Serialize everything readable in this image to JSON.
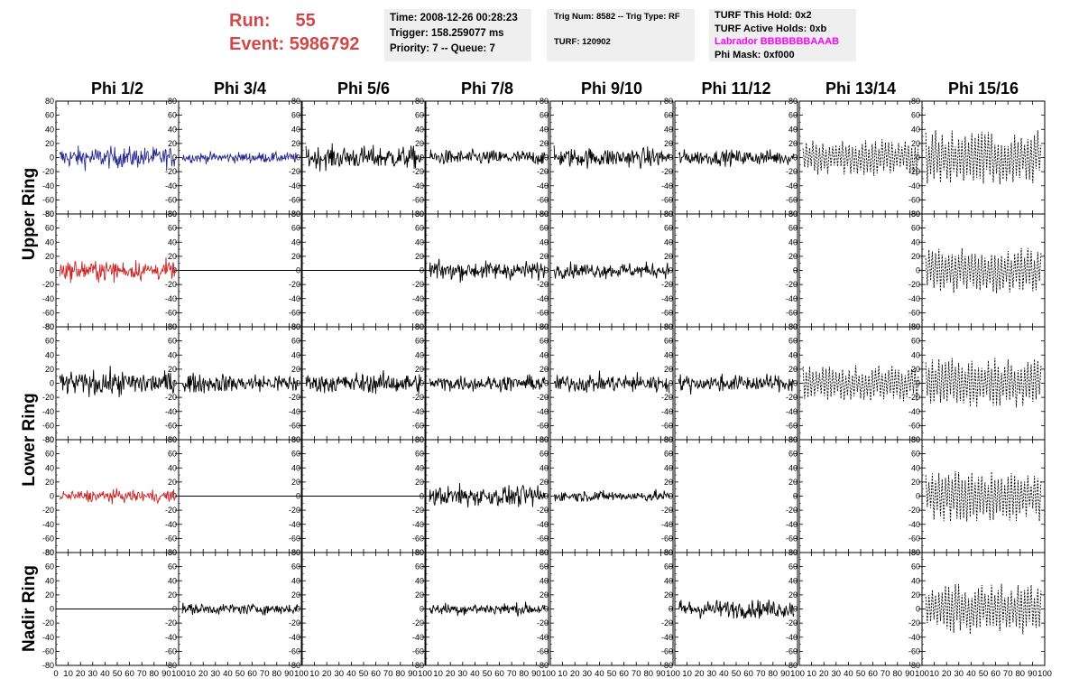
{
  "header": {
    "run_label": "Run:",
    "run_value": "55",
    "event_label": "Event:",
    "event_value": "5986792",
    "time": "Time: 2008-12-26 00:28:23",
    "trigger": "Trigger: 158.259077 ms",
    "priority": "Priority: 7 -- Queue: 7",
    "trig_num": "Trig Num: 8582 -- Trig Type: RF",
    "turf": "TURF: 120902",
    "turf_this_hold": "TURF This Hold: 0x2",
    "turf_active_holds": "TURF Active Holds: 0xb",
    "labrador": "Labrador BBBBBBBAAAB",
    "phi_mask": "Phi Mask: 0xf000"
  },
  "columns": [
    "Phi 1/2",
    "Phi 3/4",
    "Phi 5/6",
    "Phi 7/8",
    "Phi 9/10",
    "Phi 11/12",
    "Phi 13/14",
    "Phi 15/16"
  ],
  "row_groups": [
    "Upper Ring",
    "Lower Ring",
    "Nadir Ring"
  ],
  "colors": {
    "blue_trace": "#2b2b8f",
    "red_trace": "#cc2222",
    "black_trace": "#000000",
    "run_text": "#d04848",
    "labrador_text": "#ff00ff",
    "info_bg": "#efefef"
  },
  "chart_data": {
    "type": "line",
    "description_grid": "5 rows x 8 columns of waveform panels",
    "ylim": [
      -80,
      80
    ],
    "xlim": [
      0,
      100
    ],
    "y_ticks": [
      -80,
      -60,
      -40,
      -20,
      0,
      20,
      40,
      60,
      80
    ],
    "x_ticks": [
      0,
      10,
      20,
      30,
      40,
      50,
      60,
      70,
      80,
      90,
      100
    ],
    "panels": [
      {
        "row": 0,
        "col": 0,
        "amplitude": 14,
        "color": "blue"
      },
      {
        "row": 0,
        "col": 1,
        "amplitude": 7,
        "color": "blue"
      },
      {
        "row": 0,
        "col": 2,
        "amplitude": 15,
        "color": "black"
      },
      {
        "row": 0,
        "col": 3,
        "amplitude": 10,
        "color": "black"
      },
      {
        "row": 0,
        "col": 4,
        "amplitude": 13,
        "color": "black"
      },
      {
        "row": 0,
        "col": 5,
        "amplitude": 10,
        "color": "black"
      },
      {
        "row": 0,
        "col": 6,
        "amplitude": 18,
        "color": "dashed"
      },
      {
        "row": 0,
        "col": 7,
        "amplitude": 26,
        "color": "dashed"
      },
      {
        "row": 1,
        "col": 0,
        "amplitude": 13,
        "color": "red"
      },
      {
        "row": 1,
        "col": 1,
        "amplitude": 0,
        "color": "flat"
      },
      {
        "row": 1,
        "col": 2,
        "amplitude": 0,
        "color": "flat"
      },
      {
        "row": 1,
        "col": 3,
        "amplitude": 12,
        "color": "black"
      },
      {
        "row": 1,
        "col": 4,
        "amplitude": 10,
        "color": "black"
      },
      {
        "row": 1,
        "col": 5,
        "amplitude": 0,
        "color": "none"
      },
      {
        "row": 1,
        "col": 6,
        "amplitude": 0,
        "color": "none"
      },
      {
        "row": 1,
        "col": 7,
        "amplitude": 22,
        "color": "dashed"
      },
      {
        "row": 2,
        "col": 0,
        "amplitude": 16,
        "color": "black"
      },
      {
        "row": 2,
        "col": 1,
        "amplitude": 12,
        "color": "black"
      },
      {
        "row": 2,
        "col": 2,
        "amplitude": 13,
        "color": "black"
      },
      {
        "row": 2,
        "col": 3,
        "amplitude": 10,
        "color": "black"
      },
      {
        "row": 2,
        "col": 4,
        "amplitude": 12,
        "color": "black"
      },
      {
        "row": 2,
        "col": 5,
        "amplitude": 11,
        "color": "black"
      },
      {
        "row": 2,
        "col": 6,
        "amplitude": 17,
        "color": "dashed"
      },
      {
        "row": 2,
        "col": 7,
        "amplitude": 24,
        "color": "dashed"
      },
      {
        "row": 3,
        "col": 0,
        "amplitude": 8,
        "color": "red"
      },
      {
        "row": 3,
        "col": 1,
        "amplitude": 0,
        "color": "flat"
      },
      {
        "row": 3,
        "col": 2,
        "amplitude": 0,
        "color": "flat"
      },
      {
        "row": 3,
        "col": 3,
        "amplitude": 14,
        "color": "black"
      },
      {
        "row": 3,
        "col": 4,
        "amplitude": 7,
        "color": "black"
      },
      {
        "row": 3,
        "col": 5,
        "amplitude": 0,
        "color": "none"
      },
      {
        "row": 3,
        "col": 6,
        "amplitude": 0,
        "color": "none"
      },
      {
        "row": 3,
        "col": 7,
        "amplitude": 24,
        "color": "dashed"
      },
      {
        "row": 4,
        "col": 0,
        "amplitude": 0,
        "color": "flat"
      },
      {
        "row": 4,
        "col": 1,
        "amplitude": 7,
        "color": "black"
      },
      {
        "row": 4,
        "col": 2,
        "amplitude": 0,
        "color": "none"
      },
      {
        "row": 4,
        "col": 3,
        "amplitude": 8,
        "color": "black"
      },
      {
        "row": 4,
        "col": 4,
        "amplitude": 0,
        "color": "none"
      },
      {
        "row": 4,
        "col": 5,
        "amplitude": 12,
        "color": "black"
      },
      {
        "row": 4,
        "col": 6,
        "amplitude": 0,
        "color": "none"
      },
      {
        "row": 4,
        "col": 7,
        "amplitude": 24,
        "color": "dashed"
      }
    ]
  }
}
